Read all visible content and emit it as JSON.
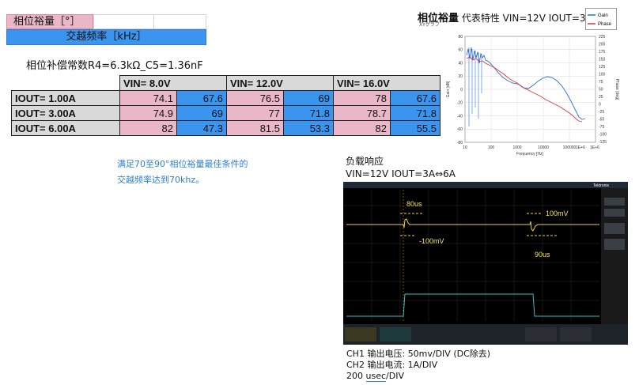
{
  "legend": {
    "phase_margin_label": "相位裕量［°］",
    "crossover_label": "交越频率［kHz］"
  },
  "constants_text": "相位补偿常数R4=6.3kΩ_C5=1.36nF",
  "table": {
    "headers": [
      "VIN=  8.0V",
      "VIN= 12.0V",
      "VIN= 16.0V"
    ],
    "rows": [
      {
        "label": "IOUT= 1.00A",
        "values": [
          "74.1",
          "67.6",
          "76.5",
          "69",
          "78",
          "67.6"
        ]
      },
      {
        "label": "IOUT= 3.00A",
        "values": [
          "74.9",
          "69",
          "77",
          "71.8",
          "78.7",
          "71.8"
        ]
      },
      {
        "label": "IOUT= 6.00A",
        "values": [
          "82",
          "47.3",
          "81.5",
          "53.3",
          "82",
          "55.5"
        ]
      }
    ]
  },
  "note": {
    "line1": "满足70至90°相位裕量最佳条件的",
    "line2": "交越频率达到70khz。"
  },
  "bode": {
    "title_bold": "相位裕量",
    "title_rest": " 代表特性    VIN=12V IOUT=3A",
    "subtitle": "XYグラフ",
    "legend_gain": "Gain",
    "legend_phase": "Phase",
    "ylabel_left": "Gain [dB]",
    "ylabel_right": "Phase [deg]",
    "xlabel": "Frequency [Hz]",
    "x_ticks": [
      "10",
      "100",
      "1000",
      "10000",
      "100000",
      "1E+6",
      "1E+6"
    ],
    "y_left_ticks": [
      "80",
      "60",
      "40",
      "20",
      "0",
      "-20",
      "-40",
      "-60",
      "-80"
    ],
    "y_right_ticks": [
      "225",
      "200",
      "175",
      "150",
      "125",
      "100",
      "75",
      "50",
      "25",
      "0",
      "-25",
      "-50",
      "-75",
      "-100",
      "-125"
    ],
    "colors": {
      "gain": "#2a6fd6",
      "phase": "#d33b3b"
    }
  },
  "response": {
    "title": "负载响应",
    "subtitle": "VIN=12V IOUT=3A⇔6A",
    "ann_80us": "80us",
    "ann_90us": "90us",
    "ann_m100mv": "-100mV",
    "ann_p100mv": "100mV",
    "brand": "Tektronix"
  },
  "scope_footer": {
    "ch1_label": "CH1 输出电压",
    "ch1_value": ": 50mv/DIV (DC除去)",
    "ch2_label": "CH2 输出电流",
    "ch2_value": ": 1A/DIV",
    "timebase_prefix": "200 ",
    "timebase_unit": "usec",
    "timebase_suffix": "/DIV"
  }
}
